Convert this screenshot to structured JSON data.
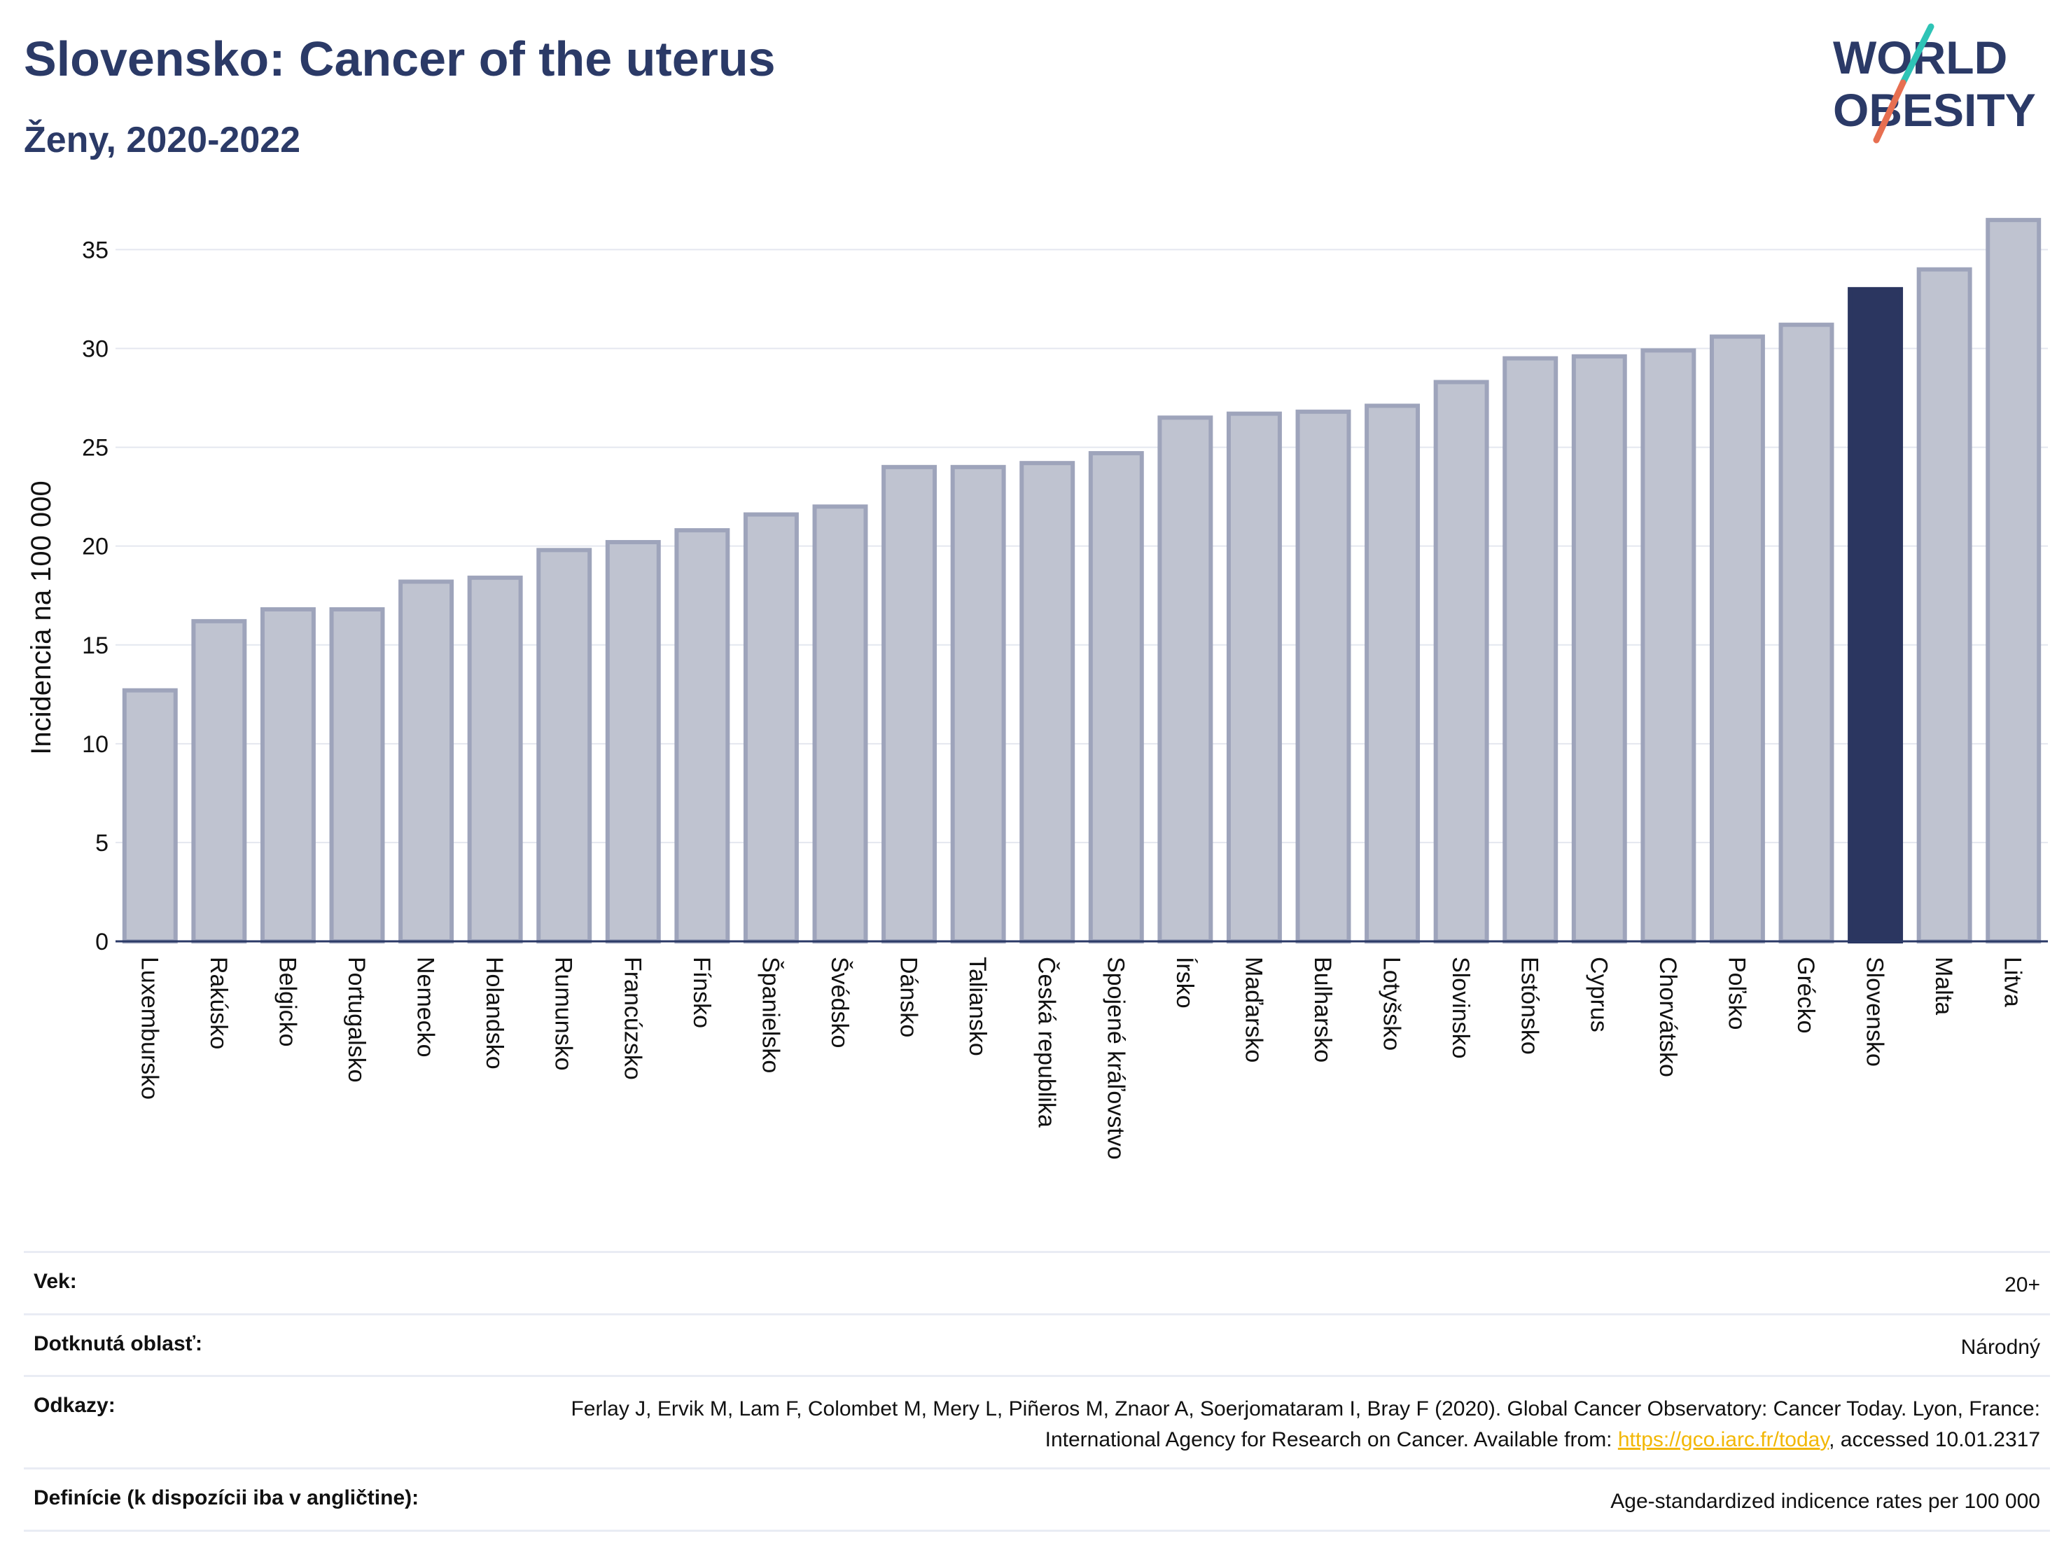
{
  "header": {
    "title": "Slovensko: Cancer of the uterus",
    "subtitle": "Ženy, 2020-2022"
  },
  "logo": {
    "line1": "WORLD",
    "line2": "OBESITY",
    "accent_colors": [
      "#2ec4b6",
      "#e76f51"
    ],
    "text_color": "#2b3a67"
  },
  "colors": {
    "bar": "#bfc3d0",
    "bar_edge": "#9ea4bb",
    "highlight": "#2b3660",
    "grid": "#e4e7ef",
    "title": "#2b3a67"
  },
  "chart_data": {
    "type": "bar",
    "ylabel": "Incidencia na 100 000",
    "xlabel": "",
    "ylim": [
      0,
      37
    ],
    "yticks": [
      0,
      5,
      10,
      15,
      20,
      25,
      30,
      35
    ],
    "grid": true,
    "highlight": "Slovensko",
    "categories": [
      "Luxembursko",
      "Rakúsko",
      "Belgicko",
      "Portugalsko",
      "Nemecko",
      "Holandsko",
      "Rumunsko",
      "Francúzsko",
      "Fínsko",
      "Španielsko",
      "Švédsko",
      "Dánsko",
      "Taliansko",
      "Česká republika",
      "Spojené kráľovstvo",
      "Írsko",
      "Maďarsko",
      "Bulharsko",
      "Lotyšsko",
      "Slovinsko",
      "Estónsko",
      "Cyprus",
      "Chorvátsko",
      "Poľsko",
      "Grécko",
      "Slovensko",
      "Malta",
      "Litva"
    ],
    "values": [
      12.7,
      16.2,
      16.8,
      16.8,
      18.2,
      18.4,
      19.8,
      20.2,
      20.8,
      21.6,
      22.0,
      24.0,
      24.0,
      24.2,
      24.7,
      26.5,
      26.7,
      26.8,
      27.1,
      28.3,
      29.5,
      29.6,
      29.9,
      30.6,
      31.2,
      33.0,
      34.0,
      36.5
    ]
  },
  "meta": [
    {
      "key": "Vek:",
      "value": "20+"
    },
    {
      "key": "Dotknutá oblasť:",
      "value": "Národný"
    },
    {
      "key": "Odkazy:",
      "value_before": "Ferlay J, Ervik M, Lam F, Colombet M, Mery L, Piñeros M, Znaor A, Soerjomataram I, Bray F (2020). Global Cancer Observatory: Cancer Today. Lyon, France: International Agency for Research on Cancer. Available from: ",
      "link": "https://gco.iarc.fr/today",
      "value_after": ", accessed 10.01.2317"
    },
    {
      "key": "Definície (k dispozícii iba v angličtine):",
      "value": "Age-standardized indicence rates per 100 000"
    }
  ]
}
